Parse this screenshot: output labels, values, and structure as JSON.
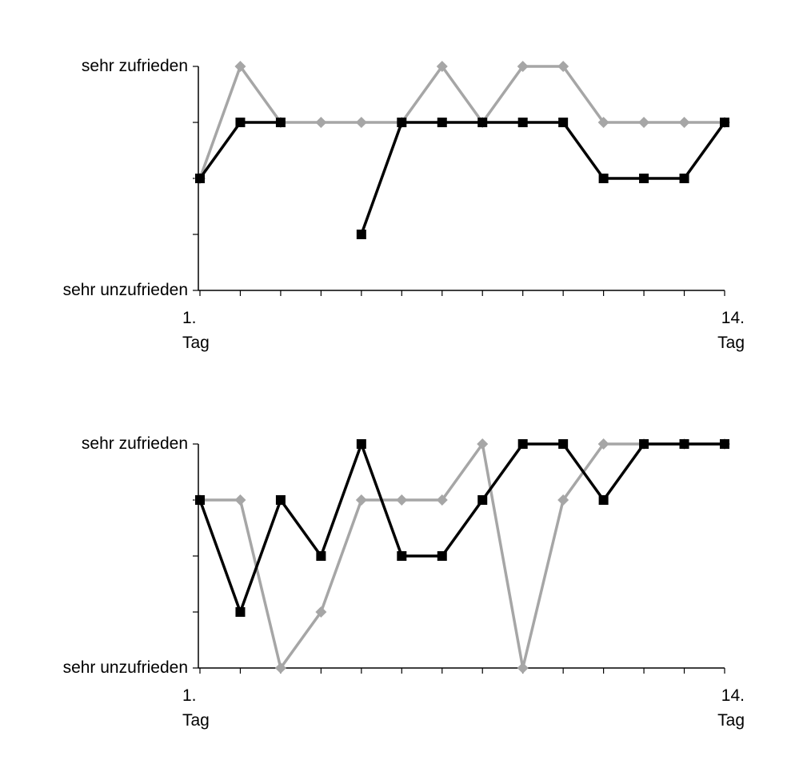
{
  "chart_data": [
    {
      "type": "line",
      "categories": [
        "1.\nTag",
        null,
        null,
        null,
        null,
        null,
        null,
        null,
        null,
        null,
        null,
        null,
        null,
        "14.\nTag"
      ],
      "ylim": [
        1,
        5
      ],
      "yticks": [
        {
          "value": 1,
          "label": "sehr unzufrieden"
        },
        {
          "value": 2,
          "label": null
        },
        {
          "value": 3,
          "label": null
        },
        {
          "value": 4,
          "label": null
        },
        {
          "value": 5,
          "label": "sehr zufrieden"
        }
      ],
      "series": [
        {
          "color": "#a6a6a6",
          "marker": "diamond",
          "values": [
            3,
            5,
            4,
            4,
            4,
            4,
            5,
            4,
            5,
            5,
            4,
            4,
            4,
            4
          ]
        },
        {
          "color": "#000000",
          "marker": "square",
          "values": [
            3,
            4,
            4,
            null,
            2,
            4,
            4,
            4,
            4,
            4,
            3,
            3,
            3,
            4
          ]
        }
      ]
    },
    {
      "type": "line",
      "categories": [
        "1.\nTag",
        null,
        null,
        null,
        null,
        null,
        null,
        null,
        null,
        null,
        null,
        null,
        null,
        "14.\nTag"
      ],
      "ylim": [
        1,
        5
      ],
      "yticks": [
        {
          "value": 1,
          "label": "sehr unzufrieden"
        },
        {
          "value": 2,
          "label": null
        },
        {
          "value": 3,
          "label": null
        },
        {
          "value": 4,
          "label": null
        },
        {
          "value": 5,
          "label": "sehr zufrieden"
        }
      ],
      "series": [
        {
          "color": "#a6a6a6",
          "marker": "diamond",
          "values": [
            4,
            4,
            1,
            2,
            4,
            4,
            4,
            5,
            1,
            4,
            5,
            5,
            5,
            5
          ]
        },
        {
          "color": "#000000",
          "marker": "square",
          "values": [
            4,
            2,
            4,
            3,
            5,
            3,
            3,
            4,
            5,
            5,
            4,
            5,
            5,
            5
          ]
        }
      ]
    }
  ]
}
